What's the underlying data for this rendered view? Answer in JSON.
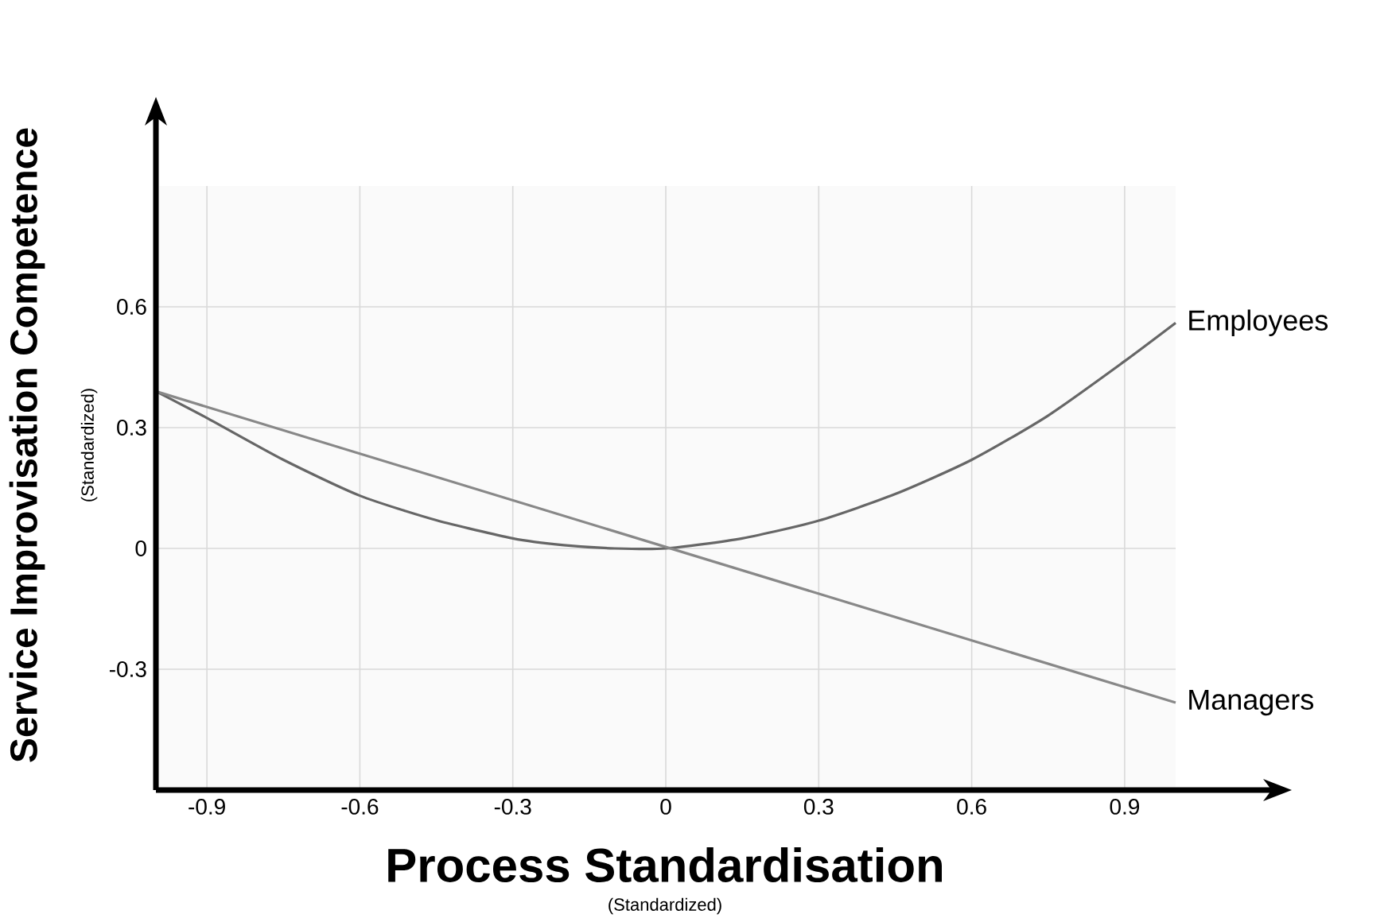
{
  "chart_data": {
    "type": "line",
    "xlabel": "Process Standardisation",
    "ylabel": "Service Improvisation Competence",
    "annotations": [
      "(Standardized)",
      "(Standardized)"
    ],
    "xlim": [
      -1,
      1
    ],
    "ylim": [
      -0.6,
      0.9
    ],
    "xticks": [
      -0.9,
      -0.6,
      -0.3,
      0,
      0.3,
      0.6,
      0.9
    ],
    "yticks": [
      -0.3,
      0,
      0.3,
      0.6
    ],
    "grid": true,
    "series": [
      {
        "name": "Employees",
        "color": "#666666",
        "x": [
          -1,
          -0.9,
          -0.75,
          -0.6,
          -0.45,
          -0.3,
          -0.2,
          -0.1,
          0,
          0.15,
          0.3,
          0.45,
          0.6,
          0.75,
          0.9,
          1
        ],
        "values": [
          0.39,
          0.324,
          0.22,
          0.131,
          0.07,
          0.025,
          0.008,
          0,
          0,
          0.025,
          0.069,
          0.135,
          0.22,
          0.33,
          0.465,
          0.56
        ]
      },
      {
        "name": "Managers",
        "color": "#888888",
        "x": [
          -1,
          1
        ],
        "values": [
          0.39,
          -0.383
        ]
      }
    ]
  }
}
